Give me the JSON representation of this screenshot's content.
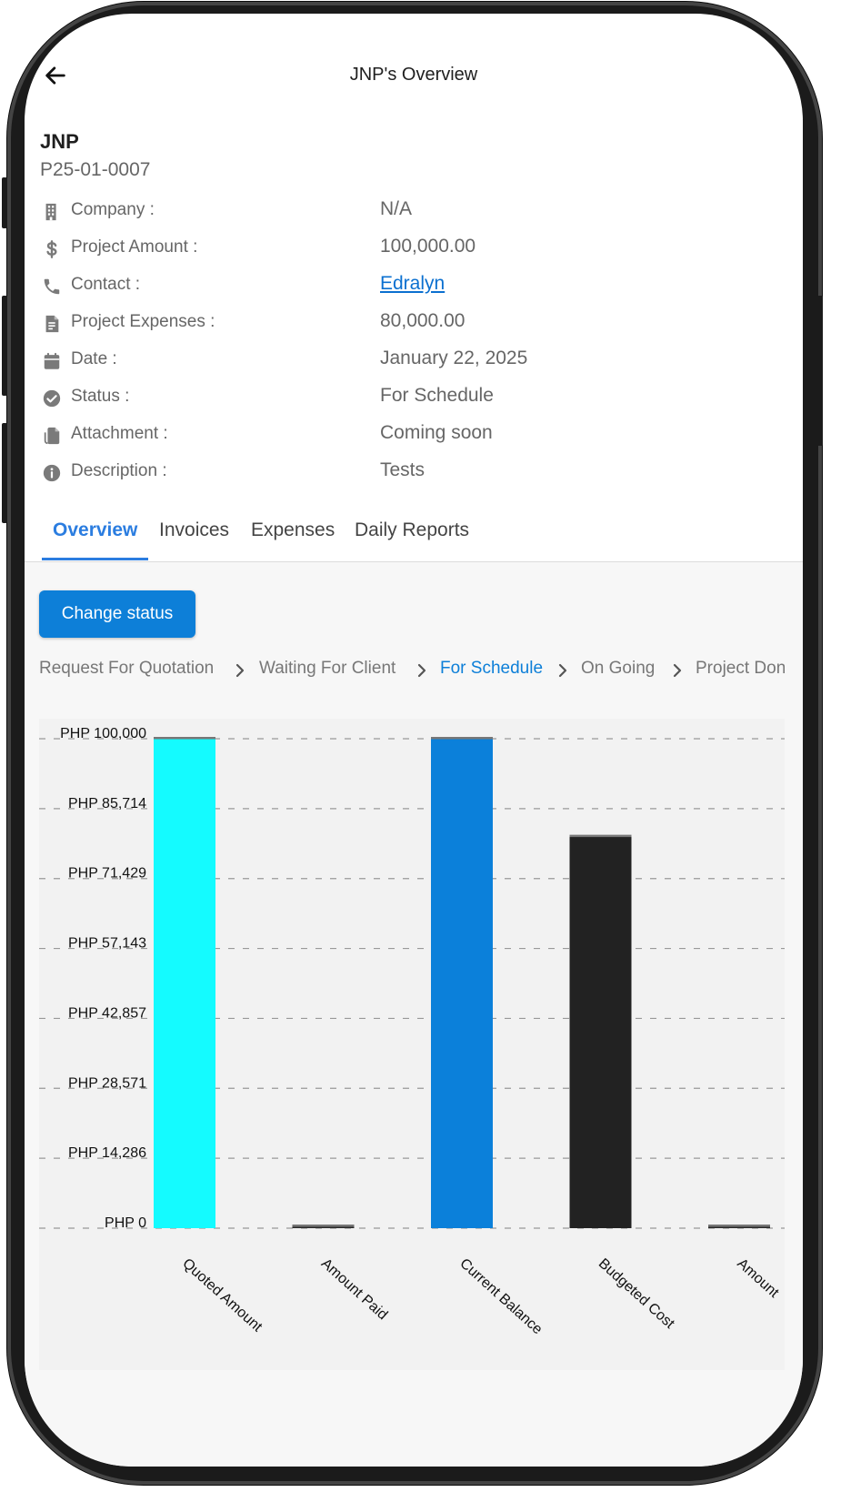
{
  "header": {
    "title": "JNP's Overview"
  },
  "project": {
    "name": "JNP",
    "code": "P25-01-0007",
    "fields": [
      {
        "icon": "building-icon",
        "label": "Company :",
        "value": "N/A"
      },
      {
        "icon": "dollar-icon",
        "label": "Project Amount :",
        "value": "100,000.00"
      },
      {
        "icon": "phone-icon",
        "label": "Contact :",
        "value": "Edralyn",
        "link": true
      },
      {
        "icon": "document-icon",
        "label": "Project Expenses :",
        "value": "80,000.00"
      },
      {
        "icon": "calendar-icon",
        "label": "Date :",
        "value": "January 22, 2025"
      },
      {
        "icon": "check-circle-icon",
        "label": "Status :",
        "value": "For Schedule"
      },
      {
        "icon": "attachment-icon",
        "label": "Attachment :",
        "value": "Coming soon"
      },
      {
        "icon": "info-icon",
        "label": "Description :",
        "value": "Tests"
      }
    ]
  },
  "tabs": [
    {
      "label": "Overview",
      "active": true
    },
    {
      "label": "Invoices",
      "active": false
    },
    {
      "label": "Expenses",
      "active": false
    },
    {
      "label": "Daily Reports",
      "active": false
    }
  ],
  "actions": {
    "change_status_label": "Change status"
  },
  "status_steps": [
    {
      "label": "Request For Quotation",
      "current": false
    },
    {
      "label": "Waiting For Client",
      "current": false
    },
    {
      "label": "For Schedule",
      "current": true
    },
    {
      "label": "On Going",
      "current": false
    },
    {
      "label": "Project Done",
      "current": false
    }
  ],
  "colors": {
    "accent": "#0d7fd8",
    "tab_active": "#2b7de0",
    "bar_quoted": "#14fbff",
    "bar_balance": "#0b80da",
    "bar_budget": "#222222"
  },
  "chart_data": {
    "type": "bar",
    "categories": [
      "Quoted Amount",
      "Amount Paid",
      "Current Balance",
      "Budgeted Cost",
      "Amount"
    ],
    "values": [
      100000,
      0,
      100000,
      80000,
      0
    ],
    "ylim": [
      0,
      100000
    ],
    "yticks": [
      "PHP 0",
      "PHP 14,286",
      "PHP 28,571",
      "PHP 42,857",
      "PHP 57,143",
      "PHP 71,429",
      "PHP 85,714",
      "PHP 100,000"
    ],
    "grid": true,
    "legend": "none"
  }
}
